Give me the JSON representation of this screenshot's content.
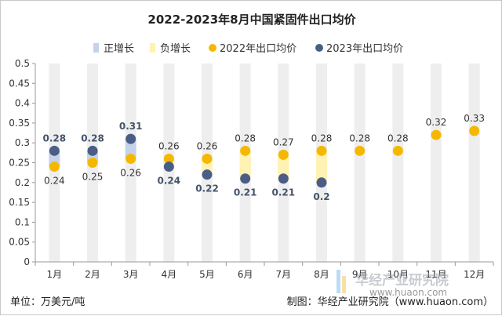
{
  "chart_data": {
    "type": "scatter",
    "title": "2022-2023年8月中国紧固件出口均价",
    "categories": [
      "1月",
      "2月",
      "3月",
      "4月",
      "5月",
      "6月",
      "7月",
      "8月",
      "9月",
      "10月",
      "11月",
      "12月"
    ],
    "ylim": [
      0,
      0.5
    ],
    "yticks": [
      "0",
      "0.05",
      "0.1",
      "0.15",
      "0.2",
      "0.25",
      "0.3",
      "0.35",
      "0.4",
      "0.45",
      "0.5"
    ],
    "grid": false,
    "legend_position": "top",
    "series": [
      {
        "name": "2022年出口均价",
        "color": "#f5b800",
        "values": [
          0.24,
          0.25,
          0.26,
          0.26,
          0.26,
          0.28,
          0.27,
          0.28,
          0.28,
          0.28,
          0.32,
          0.33
        ],
        "labels": [
          "0.24",
          "0.25",
          "0.26",
          "0.26",
          "0.26",
          "0.28",
          "0.27",
          "0.28",
          "0.28",
          "0.28",
          "0.32",
          "0.33"
        ]
      },
      {
        "name": "2023年出口均价",
        "color": "#4a5d86",
        "values": [
          0.28,
          0.28,
          0.31,
          0.24,
          0.22,
          0.21,
          0.21,
          0.2,
          null,
          null,
          null,
          null
        ],
        "labels": [
          "0.28",
          "0.28",
          "0.31",
          "0.24",
          "0.22",
          "0.21",
          "0.21",
          "0.2",
          "",
          "",
          "",
          ""
        ]
      }
    ],
    "legend": [
      {
        "name": "正增长",
        "color": "#c5d3ea",
        "marker": "bar"
      },
      {
        "name": "负增长",
        "color": "#fff2b3",
        "marker": "bar"
      },
      {
        "name": "2022年出口均价",
        "color": "#f5b800",
        "marker": "dot"
      },
      {
        "name": "2023年出口均价",
        "color": "#4a5d86",
        "marker": "dot"
      }
    ],
    "background_bar_color": "#eeeeee"
  },
  "footer": {
    "unit": "单位：万美元/吨",
    "source": "制图：华经产业研究院（www.huaon.com）"
  },
  "watermark": {
    "text": "华经产业研究院",
    "url": "www.huaon.com"
  }
}
